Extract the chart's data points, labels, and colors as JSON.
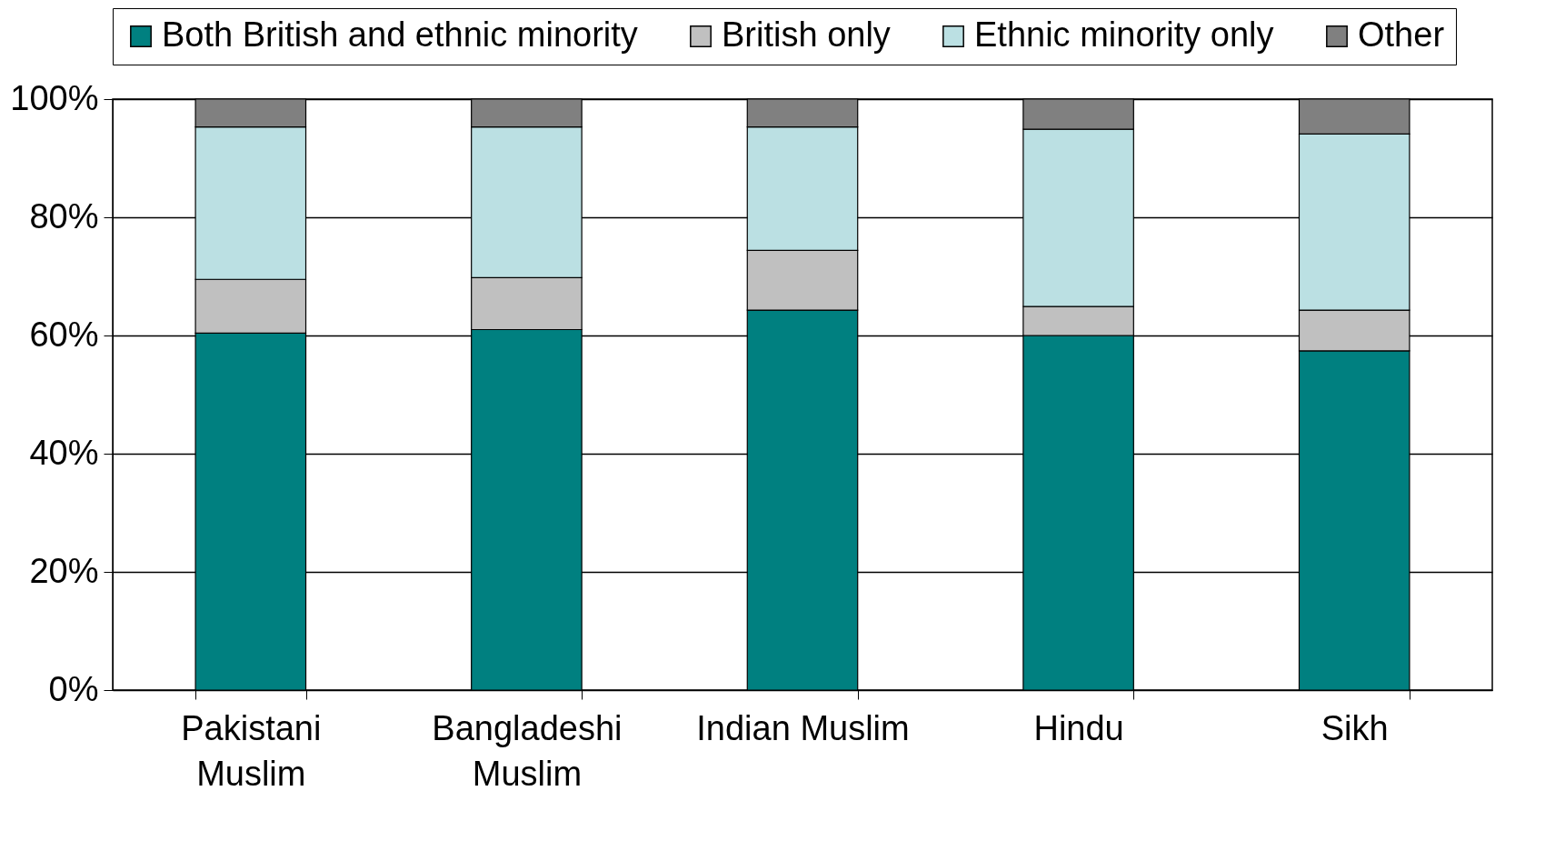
{
  "chart_data": {
    "type": "bar",
    "stacked": true,
    "categories": [
      "Pakistani Muslim",
      "Bangladeshi Muslim",
      "Indian Muslim",
      "Hindu",
      "Sikh"
    ],
    "series": [
      {
        "name": "Both British and ethnic minority",
        "color": "#008080",
        "values": [
          60.4,
          61.0,
          64.3,
          60.0,
          57.4
        ]
      },
      {
        "name": "British only",
        "color": "#c0c0c0",
        "values": [
          9.1,
          8.8,
          10.1,
          4.9,
          6.9
        ]
      },
      {
        "name": "Ethnic minority only",
        "color": "#bbe0e3",
        "values": [
          25.8,
          25.5,
          20.9,
          30.0,
          29.8
        ]
      },
      {
        "name": "Other",
        "color": "#808080",
        "values": [
          4.7,
          4.7,
          4.7,
          5.1,
          5.9
        ]
      }
    ],
    "ylim": [
      0,
      100
    ],
    "yticks": [
      {
        "value": 0,
        "label": "0%"
      },
      {
        "value": 20,
        "label": "20%"
      },
      {
        "value": 40,
        "label": "40%"
      },
      {
        "value": 60,
        "label": "60%"
      },
      {
        "value": 80,
        "label": "80%"
      },
      {
        "value": 100,
        "label": "100%"
      }
    ],
    "grid": "y",
    "legend": "top"
  }
}
